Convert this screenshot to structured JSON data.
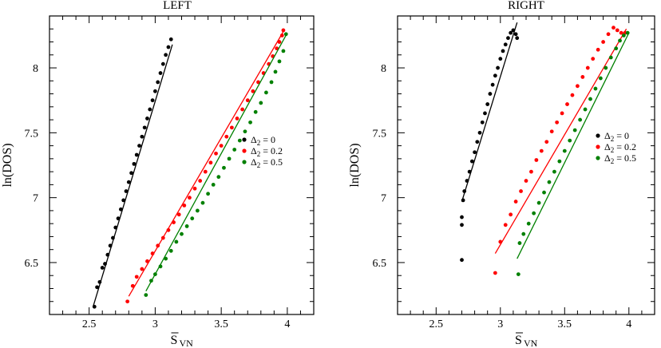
{
  "chart_data": [
    {
      "type": "scatter",
      "title": "LEFT",
      "xlabel_main": "S",
      "xlabel_sub": "VN",
      "ylabel": "ln(DOS)",
      "xlim": [
        2.2,
        4.2
      ],
      "ylim": [
        6.1,
        8.4
      ],
      "xticks": [
        "2.5",
        "3",
        "3.5",
        "4"
      ],
      "yticks": [
        "6.5",
        "7",
        "7.5",
        "8"
      ],
      "legend_position": "center-right",
      "series": [
        {
          "name": "Δ2 = 0",
          "legend_sym": "Δ",
          "legend_sub": "2",
          "legend_val": " = 0",
          "color": "#000000",
          "x": [
            2.54,
            2.56,
            2.58,
            2.6,
            2.62,
            2.64,
            2.66,
            2.68,
            2.7,
            2.72,
            2.74,
            2.76,
            2.78,
            2.8,
            2.82,
            2.84,
            2.86,
            2.88,
            2.9,
            2.92,
            2.94,
            2.96,
            2.98,
            3.0,
            3.02,
            3.04,
            3.06,
            3.08,
            3.1,
            3.12
          ],
          "y": [
            6.16,
            6.31,
            6.35,
            6.46,
            6.49,
            6.56,
            6.63,
            6.69,
            6.77,
            6.84,
            6.91,
            6.98,
            7.05,
            7.12,
            7.19,
            7.26,
            7.33,
            7.4,
            7.47,
            7.54,
            7.61,
            7.68,
            7.75,
            7.82,
            7.89,
            7.96,
            8.03,
            8.1,
            8.16,
            8.22
          ],
          "fit": [
            [
              2.53,
              6.16
            ],
            [
              3.13,
              8.18
            ]
          ]
        },
        {
          "name": "Δ2 = 0.2",
          "legend_sym": "Δ",
          "legend_sub": "2",
          "legend_val": " = 0.2",
          "color": "#ff0000",
          "x": [
            2.79,
            2.83,
            2.86,
            2.9,
            2.94,
            2.98,
            3.02,
            3.06,
            3.1,
            3.14,
            3.18,
            3.22,
            3.26,
            3.3,
            3.34,
            3.38,
            3.42,
            3.46,
            3.5,
            3.54,
            3.58,
            3.62,
            3.66,
            3.7,
            3.74,
            3.78,
            3.82,
            3.86,
            3.89,
            3.92,
            3.94,
            3.96,
            3.97
          ],
          "y": [
            6.2,
            6.32,
            6.39,
            6.45,
            6.51,
            6.57,
            6.63,
            6.69,
            6.75,
            6.81,
            6.87,
            6.94,
            7.0,
            7.07,
            7.13,
            7.2,
            7.27,
            7.34,
            7.4,
            7.47,
            7.54,
            7.61,
            7.68,
            7.75,
            7.82,
            7.89,
            7.96,
            8.03,
            8.09,
            8.15,
            8.2,
            8.25,
            8.29
          ],
          "fit": [
            [
              2.8,
              6.24
            ],
            [
              3.97,
              8.28
            ]
          ]
        },
        {
          "name": "Δ2 = 0.5",
          "legend_sym": "Δ",
          "legend_sub": "2",
          "legend_val": " = 0.5",
          "color": "#008000",
          "x": [
            2.93,
            2.97,
            3.0,
            3.04,
            3.08,
            3.12,
            3.16,
            3.2,
            3.24,
            3.28,
            3.32,
            3.36,
            3.4,
            3.44,
            3.48,
            3.52,
            3.56,
            3.6,
            3.64,
            3.68,
            3.72,
            3.76,
            3.8,
            3.84,
            3.88,
            3.91,
            3.94,
            3.97,
            3.99
          ],
          "y": [
            6.25,
            6.36,
            6.41,
            6.47,
            6.53,
            6.59,
            6.66,
            6.72,
            6.78,
            6.84,
            6.9,
            6.96,
            7.03,
            7.1,
            7.16,
            7.23,
            7.3,
            7.37,
            7.44,
            7.51,
            7.58,
            7.66,
            7.73,
            7.81,
            7.89,
            7.97,
            8.05,
            8.13,
            8.26
          ],
          "fit": [
            [
              2.93,
              6.28
            ],
            [
              4.0,
              8.27
            ]
          ]
        }
      ]
    },
    {
      "type": "scatter",
      "title": "RIGHT",
      "xlabel_main": "S",
      "xlabel_sub": "VN",
      "ylabel": "ln(DOS)",
      "xlim": [
        2.2,
        4.2
      ],
      "ylim": [
        6.1,
        8.4
      ],
      "xticks": [
        "2.5",
        "3",
        "3.5",
        "4"
      ],
      "yticks": [
        "6.5",
        "7",
        "7.5",
        "8"
      ],
      "legend_position": "center-right",
      "series": [
        {
          "name": "Δ2 = 0",
          "legend_sym": "Δ",
          "legend_sub": "2",
          "legend_val": " = 0",
          "color": "#000000",
          "x": [
            2.7,
            2.7,
            2.7,
            2.71,
            2.72,
            2.74,
            2.76,
            2.78,
            2.8,
            2.82,
            2.84,
            2.86,
            2.88,
            2.9,
            2.92,
            2.94,
            2.96,
            2.98,
            3.0,
            3.02,
            3.04,
            3.06,
            3.08,
            3.1,
            3.12,
            3.13
          ],
          "y": [
            6.52,
            6.79,
            6.85,
            6.98,
            7.05,
            7.13,
            7.2,
            7.28,
            7.35,
            7.43,
            7.5,
            7.58,
            7.65,
            7.72,
            7.8,
            7.87,
            7.94,
            8.0,
            8.07,
            8.13,
            8.18,
            8.23,
            8.27,
            8.29,
            8.26,
            8.23
          ],
          "fit": [
            [
              2.7,
              6.97
            ],
            [
              3.13,
              8.35
            ]
          ]
        },
        {
          "name": "Δ2 = 0.2",
          "legend_sym": "Δ",
          "legend_sub": "2",
          "legend_val": " = 0.2",
          "color": "#ff0000",
          "x": [
            2.96,
            3.0,
            3.04,
            3.08,
            3.12,
            3.16,
            3.2,
            3.24,
            3.28,
            3.32,
            3.36,
            3.4,
            3.44,
            3.48,
            3.52,
            3.56,
            3.6,
            3.64,
            3.68,
            3.72,
            3.76,
            3.8,
            3.84,
            3.88,
            3.91,
            3.94,
            3.97
          ],
          "y": [
            6.42,
            6.66,
            6.79,
            6.87,
            6.97,
            7.05,
            7.13,
            7.2,
            7.29,
            7.36,
            7.43,
            7.51,
            7.58,
            7.65,
            7.72,
            7.79,
            7.86,
            7.93,
            8.0,
            8.07,
            8.14,
            8.2,
            8.26,
            8.31,
            8.29,
            8.27,
            8.27
          ],
          "fit": [
            [
              2.96,
              6.57
            ],
            [
              3.98,
              8.3
            ]
          ]
        },
        {
          "name": "Δ2 = 0.5",
          "legend_sym": "Δ",
          "legend_sub": "2",
          "legend_val": " = 0.5",
          "color": "#008000",
          "x": [
            3.14,
            3.15,
            3.18,
            3.22,
            3.26,
            3.3,
            3.34,
            3.38,
            3.42,
            3.46,
            3.5,
            3.54,
            3.58,
            3.62,
            3.66,
            3.7,
            3.74,
            3.78,
            3.82,
            3.86,
            3.9,
            3.93,
            3.96,
            3.99
          ],
          "y": [
            6.41,
            6.65,
            6.72,
            6.8,
            6.88,
            6.96,
            7.04,
            7.12,
            7.2,
            7.28,
            7.36,
            7.44,
            7.52,
            7.6,
            7.68,
            7.76,
            7.84,
            7.92,
            8.0,
            8.08,
            8.15,
            8.21,
            8.25,
            8.27
          ],
          "fit": [
            [
              3.13,
              6.53
            ],
            [
              4.0,
              8.27
            ]
          ]
        }
      ]
    }
  ]
}
